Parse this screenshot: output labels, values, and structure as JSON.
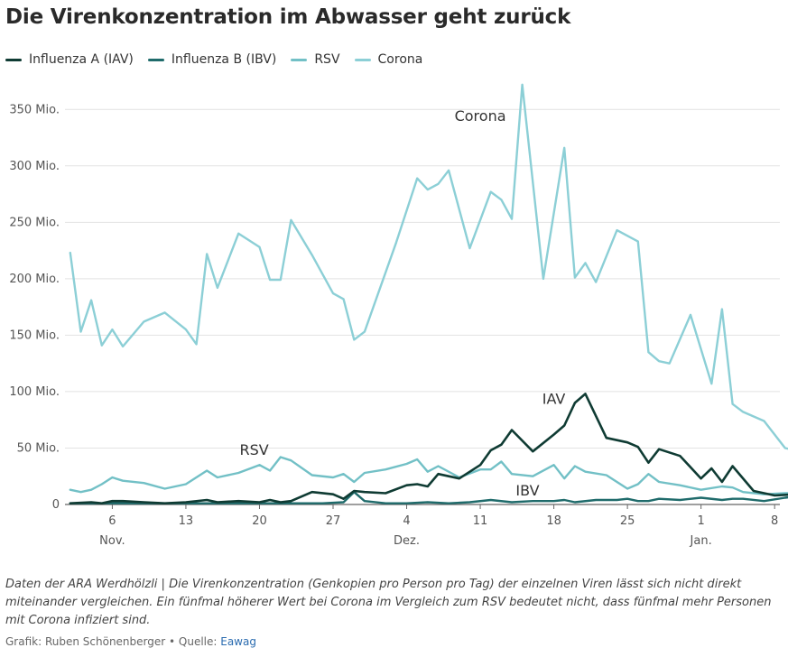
{
  "header": {
    "title": "Die Virenkonzentration im Abwasser geht zurück"
  },
  "footer": {
    "note": "Daten der ARA Werdhölzli | Die Virenkonzentration (Genkopien pro Person pro Tag) der einzelnen Viren lässt sich nicht direkt miteinander vergleichen. Ein fünfmal höherer Wert bei Corona im Vergleich zum RSV bedeutet nicht, dass fünfmal mehr Personen mit Corona infiziert sind.",
    "credit_prefix": "Grafik: Ruben Schönenberger • Quelle: ",
    "source_link": "Eawag"
  },
  "chart_data": {
    "type": "line",
    "title": "Die Virenkonzentration im Abwasser geht zurück",
    "xlabel": "",
    "ylabel": "",
    "x_unit": "days since 1 Nov",
    "xlim": [
      1.5,
      69.5
    ],
    "ylim": [
      0,
      375
    ],
    "grid": true,
    "legend_position": "top-left",
    "y_ticks": [
      {
        "value": 0,
        "label": "0"
      },
      {
        "value": 50,
        "label": "50 Mio."
      },
      {
        "value": 100,
        "label": "100 Mio."
      },
      {
        "value": 150,
        "label": "150 Mio."
      },
      {
        "value": 200,
        "label": "200 Mio."
      },
      {
        "value": 250,
        "label": "250 Mio."
      },
      {
        "value": 300,
        "label": "300 Mio."
      },
      {
        "value": 350,
        "label": "350 Mio."
      }
    ],
    "x_ticks": [
      {
        "value": 6,
        "label": "6",
        "month": "Nov."
      },
      {
        "value": 13,
        "label": "13",
        "month": ""
      },
      {
        "value": 20,
        "label": "20",
        "month": ""
      },
      {
        "value": 27,
        "label": "27",
        "month": ""
      },
      {
        "value": 34,
        "label": "4",
        "month": "Dez."
      },
      {
        "value": 41,
        "label": "11",
        "month": ""
      },
      {
        "value": 48,
        "label": "18",
        "month": ""
      },
      {
        "value": 55,
        "label": "25",
        "month": ""
      },
      {
        "value": 62,
        "label": "1",
        "month": "Jan."
      },
      {
        "value": 69,
        "label": "8",
        "month": ""
      }
    ],
    "series": [
      {
        "name": "Corona",
        "color": "#8ccfd6",
        "annotation": {
          "text": "Corona",
          "x": 41,
          "y": 340
        },
        "points": [
          [
            2,
            223
          ],
          [
            3,
            153
          ],
          [
            4,
            181
          ],
          [
            5,
            141
          ],
          [
            6,
            155
          ],
          [
            7,
            140
          ],
          [
            9,
            162
          ],
          [
            11,
            170
          ],
          [
            13,
            155
          ],
          [
            14,
            142
          ],
          [
            15,
            222
          ],
          [
            16,
            192
          ],
          [
            18,
            240
          ],
          [
            20,
            228
          ],
          [
            21,
            199
          ],
          [
            22,
            199
          ],
          [
            23,
            252
          ],
          [
            25,
            221
          ],
          [
            27,
            187
          ],
          [
            28,
            182
          ],
          [
            29,
            146
          ],
          [
            30,
            153
          ],
          [
            33,
            232
          ],
          [
            35,
            289
          ],
          [
            36,
            279
          ],
          [
            37,
            284
          ],
          [
            38,
            296
          ],
          [
            40,
            227
          ],
          [
            42,
            277
          ],
          [
            43,
            270
          ],
          [
            44,
            253
          ],
          [
            45,
            372
          ],
          [
            47,
            200
          ],
          [
            49,
            316
          ],
          [
            50,
            201
          ],
          [
            51,
            214
          ],
          [
            52,
            197
          ],
          [
            54,
            243
          ],
          [
            56,
            233
          ],
          [
            57,
            135
          ],
          [
            58,
            127
          ],
          [
            59,
            125
          ],
          [
            61,
            168
          ],
          [
            63,
            107
          ],
          [
            64,
            173
          ],
          [
            65,
            89
          ],
          [
            66,
            82
          ],
          [
            68,
            74
          ],
          [
            70,
            50
          ],
          [
            71,
            48
          ]
        ]
      },
      {
        "name": "RSV",
        "color": "#72c0c6",
        "annotation": {
          "text": "RSV",
          "x": 19.5,
          "y": 44
        },
        "points": [
          [
            2,
            13
          ],
          [
            3,
            11
          ],
          [
            4,
            13
          ],
          [
            5,
            18
          ],
          [
            6,
            24
          ],
          [
            7,
            21
          ],
          [
            9,
            19
          ],
          [
            11,
            14
          ],
          [
            13,
            18
          ],
          [
            15,
            30
          ],
          [
            16,
            24
          ],
          [
            18,
            28
          ],
          [
            20,
            35
          ],
          [
            21,
            30
          ],
          [
            22,
            42
          ],
          [
            23,
            39
          ],
          [
            25,
            26
          ],
          [
            27,
            24
          ],
          [
            28,
            27
          ],
          [
            29,
            20
          ],
          [
            30,
            28
          ],
          [
            32,
            31
          ],
          [
            34,
            36
          ],
          [
            35,
            40
          ],
          [
            36,
            29
          ],
          [
            37,
            34
          ],
          [
            39,
            24
          ],
          [
            41,
            31
          ],
          [
            42,
            31
          ],
          [
            43,
            38
          ],
          [
            44,
            27
          ],
          [
            46,
            25
          ],
          [
            48,
            35
          ],
          [
            49,
            23
          ],
          [
            50,
            34
          ],
          [
            51,
            29
          ],
          [
            53,
            26
          ],
          [
            55,
            14
          ],
          [
            56,
            18
          ],
          [
            57,
            27
          ],
          [
            58,
            20
          ],
          [
            60,
            17
          ],
          [
            62,
            13
          ],
          [
            64,
            16
          ],
          [
            65,
            15
          ],
          [
            66,
            11
          ],
          [
            68,
            9
          ],
          [
            70,
            10
          ],
          [
            71,
            10
          ]
        ]
      },
      {
        "name": "Influenza B (IBV)",
        "color": "#1f6b6b",
        "annotation": {
          "text": "IBV",
          "x": 45.5,
          "y": 8
        },
        "points": [
          [
            2,
            1
          ],
          [
            4,
            1
          ],
          [
            6,
            1
          ],
          [
            8,
            1
          ],
          [
            10,
            1
          ],
          [
            12,
            1
          ],
          [
            14,
            1
          ],
          [
            16,
            1
          ],
          [
            18,
            1
          ],
          [
            20,
            1
          ],
          [
            22,
            1
          ],
          [
            24,
            1
          ],
          [
            26,
            1
          ],
          [
            28,
            2
          ],
          [
            29,
            11
          ],
          [
            30,
            3
          ],
          [
            32,
            1
          ],
          [
            34,
            1
          ],
          [
            36,
            2
          ],
          [
            38,
            1
          ],
          [
            40,
            2
          ],
          [
            42,
            4
          ],
          [
            44,
            2
          ],
          [
            46,
            3
          ],
          [
            48,
            3
          ],
          [
            49,
            4
          ],
          [
            50,
            2
          ],
          [
            52,
            4
          ],
          [
            54,
            4
          ],
          [
            55,
            5
          ],
          [
            56,
            3
          ],
          [
            57,
            3
          ],
          [
            58,
            5
          ],
          [
            60,
            4
          ],
          [
            62,
            6
          ],
          [
            64,
            4
          ],
          [
            65,
            5
          ],
          [
            66,
            5
          ],
          [
            68,
            3
          ],
          [
            70,
            6
          ],
          [
            71,
            7
          ]
        ]
      },
      {
        "name": "Influenza A (IAV)",
        "color": "#0f3b33",
        "annotation": {
          "text": "IAV",
          "x": 48,
          "y": 89
        },
        "points": [
          [
            2,
            1
          ],
          [
            4,
            2
          ],
          [
            5,
            1
          ],
          [
            6,
            3
          ],
          [
            7,
            3
          ],
          [
            9,
            2
          ],
          [
            11,
            1
          ],
          [
            13,
            2
          ],
          [
            15,
            4
          ],
          [
            16,
            2
          ],
          [
            18,
            3
          ],
          [
            20,
            2
          ],
          [
            21,
            4
          ],
          [
            22,
            2
          ],
          [
            23,
            3
          ],
          [
            25,
            11
          ],
          [
            27,
            9
          ],
          [
            28,
            5
          ],
          [
            29,
            12
          ],
          [
            30,
            11
          ],
          [
            32,
            10
          ],
          [
            34,
            17
          ],
          [
            35,
            18
          ],
          [
            36,
            16
          ],
          [
            37,
            27
          ],
          [
            39,
            23
          ],
          [
            41,
            35
          ],
          [
            42,
            48
          ],
          [
            43,
            53
          ],
          [
            44,
            66
          ],
          [
            46,
            47
          ],
          [
            48,
            62
          ],
          [
            49,
            70
          ],
          [
            50,
            90
          ],
          [
            51,
            98
          ],
          [
            53,
            59
          ],
          [
            55,
            55
          ],
          [
            56,
            51
          ],
          [
            57,
            37
          ],
          [
            58,
            49
          ],
          [
            60,
            43
          ],
          [
            62,
            23
          ],
          [
            63,
            32
          ],
          [
            64,
            20
          ],
          [
            65,
            34
          ],
          [
            67,
            12
          ],
          [
            69,
            8
          ],
          [
            71,
            9
          ]
        ]
      }
    ]
  }
}
